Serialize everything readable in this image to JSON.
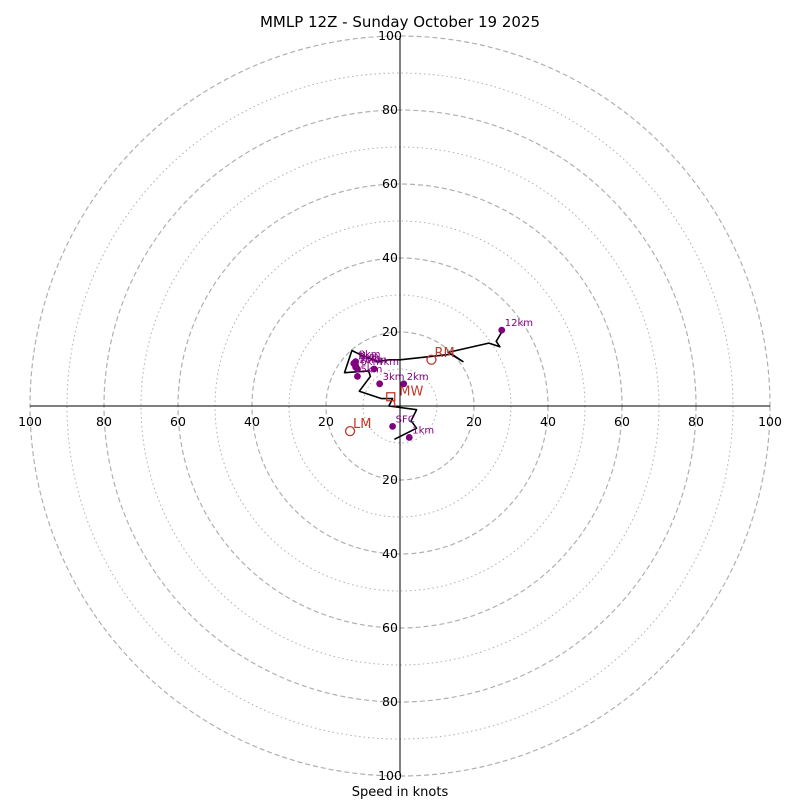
{
  "chart_data": {
    "type": "hodograph",
    "title": "MMLP 12Z - Sunday October 19 2025",
    "xlabel": "Speed in knots",
    "max_speed": 100,
    "ring_major": [
      20,
      40,
      60,
      80,
      100
    ],
    "ring_minor": [
      10,
      30,
      50,
      70,
      90
    ],
    "tick_labels": {
      "top": [
        "20",
        "40",
        "60",
        "80",
        "100"
      ],
      "bottom": [
        "20",
        "40",
        "60",
        "80",
        "100"
      ],
      "left": [
        "20",
        "40",
        "60",
        "80",
        "100"
      ],
      "right": [
        "20",
        "40",
        "60",
        "80",
        "100"
      ]
    },
    "wind_trace_uv": [
      [
        -1.5,
        -9
      ],
      [
        4.5,
        -6
      ],
      [
        3,
        -4
      ],
      [
        4.5,
        -1
      ],
      [
        -3,
        0
      ],
      [
        -2,
        2
      ],
      [
        -5,
        2
      ],
      [
        -11,
        4
      ],
      [
        -8,
        8
      ],
      [
        -8.5,
        9.5
      ],
      [
        -15,
        9
      ],
      [
        -13,
        15
      ],
      [
        -11,
        14
      ],
      [
        -6,
        12
      ],
      [
        -3,
        12.5
      ],
      [
        0,
        12.5
      ],
      [
        14,
        14
      ],
      [
        17,
        12
      ],
      [
        13,
        14.5
      ],
      [
        24,
        17
      ],
      [
        27,
        16
      ],
      [
        26,
        17.5
      ],
      [
        27.5,
        20
      ]
    ],
    "heights": [
      {
        "label": "SFC",
        "u": -2,
        "v": -5.5
      },
      {
        "label": "1km",
        "u": 2.5,
        "v": -8.5
      },
      {
        "label": "2km",
        "u": 1,
        "v": 6
      },
      {
        "label": "3km",
        "u": -5.5,
        "v": 6
      },
      {
        "label": "4km",
        "u": -7,
        "v": 10
      },
      {
        "label": "5km",
        "u": -11.5,
        "v": 8
      },
      {
        "label": "6km",
        "u": -11.5,
        "v": 10
      },
      {
        "label": "7km",
        "u": -12.5,
        "v": 11.5
      },
      {
        "label": "8km",
        "u": -12,
        "v": 12
      },
      {
        "label": "9km",
        "u": -12,
        "v": 11
      },
      {
        "label": "10km",
        "u": -12,
        "v": 10.5
      },
      {
        "label": "12km",
        "u": 27.5,
        "v": 20.5
      }
    ],
    "motions": [
      {
        "label": "RM",
        "u": 8.5,
        "v": 12.5
      },
      {
        "label": "LM",
        "u": -13.5,
        "v": -6.8
      },
      {
        "label": "MW",
        "u": -1,
        "v": 2
      }
    ],
    "shear_marker": {
      "label": "",
      "u": -2.5,
      "v": 2.5
    },
    "colors": {
      "trace": "#000000",
      "height_points": "#800080",
      "motion": "#c0392b",
      "grid": "#b0b0b0"
    }
  }
}
